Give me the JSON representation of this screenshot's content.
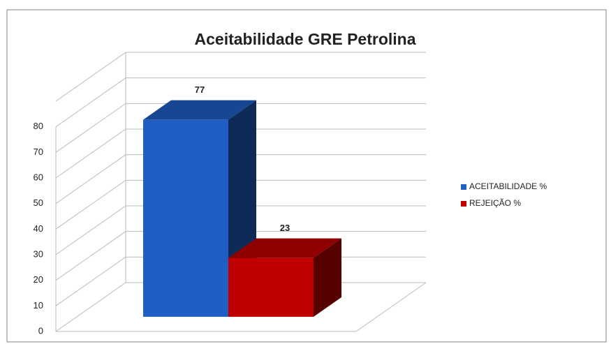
{
  "chart_data": {
    "type": "bar",
    "title": "Aceitabilidade GRE Petrolina",
    "categories": [
      null
    ],
    "series": [
      {
        "name": "ACEITABILIDADE %",
        "color": "#1f5fc4",
        "values": [
          77
        ]
      },
      {
        "name": "REJEIÇÃO %",
        "color": "#c00000",
        "values": [
          23
        ]
      }
    ],
    "ylim": [
      0,
      90
    ],
    "yticks": [
      0,
      10,
      20,
      30,
      40,
      50,
      60,
      70,
      80
    ],
    "grid": true,
    "legend": "right"
  }
}
